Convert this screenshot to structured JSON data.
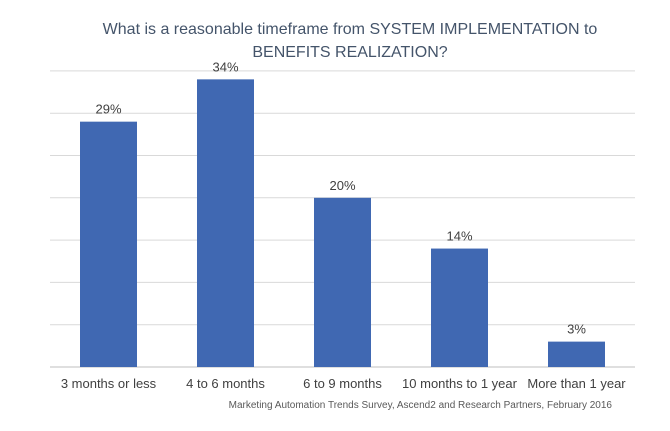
{
  "chart_data": {
    "type": "bar",
    "title_line1": "What is a reasonable timeframe from SYSTEM IMPLEMENTATION to",
    "title_line2": "BENEFITS REALIZATION?",
    "categories": [
      "3 months or less",
      "4 to 6 months",
      "6 to 9 months",
      "10 months to 1 year",
      "More than 1 year"
    ],
    "values": [
      29,
      34,
      20,
      14,
      3
    ],
    "value_labels": [
      "29%",
      "34%",
      "20%",
      "14%",
      "3%"
    ],
    "ylim": [
      0,
      35
    ],
    "grid": true,
    "bar_color": "#4068b2",
    "grid_color": "#d9d9d9",
    "source": "Marketing Automation Trends Survey, Ascend2 and Research Partners, February 2016"
  }
}
